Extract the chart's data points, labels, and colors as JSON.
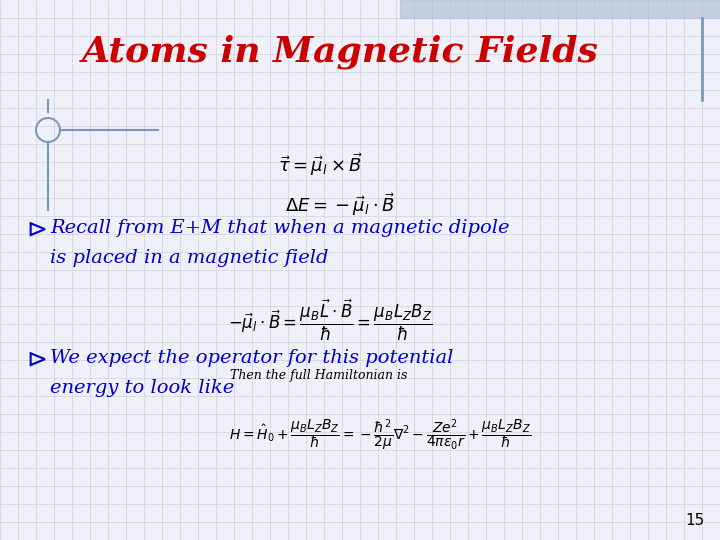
{
  "title": "Atoms in Magnetic Fields",
  "title_color": "#CC0000",
  "title_fontsize": 26,
  "bg_color": "#F0F0F8",
  "grid_color": "#C8C8DC",
  "text_color": "#0000CC",
  "eq1": "$\\vec{\\tau} = \\vec{\\mu}_l \\times \\vec{B}$",
  "eq2": "$\\Delta E = -\\vec{\\mu}_l \\cdot \\vec{B}$",
  "bullet1_line1": "Recall from E+M that when a magnetic dipole",
  "bullet1_line2": "is placed in a magnetic field",
  "eq3": "$-\\vec{\\mu}_l \\cdot \\vec{B} = \\dfrac{\\mu_B\\vec{L}\\cdot\\vec{B}}{\\hbar} = \\dfrac{\\mu_B L_Z B_Z}{\\hbar}$",
  "sub_note": "Then the full Hamiltonian is",
  "bullet2_line1": "We expect the operator for this potential",
  "bullet2_line2": "energy to look like",
  "eq4": "$H = \\hat{H}_0 + \\dfrac{\\mu_B L_Z B_Z}{\\hbar} = -\\dfrac{\\hbar^2}{2\\mu}\\nabla^2 - \\dfrac{Ze^2}{4\\pi\\varepsilon_0 r} + \\dfrac{\\mu_B L_Z B_Z}{\\hbar}$",
  "slide_number": "15",
  "accent_color": "#7799BB",
  "bullet_color": "#0000CC"
}
